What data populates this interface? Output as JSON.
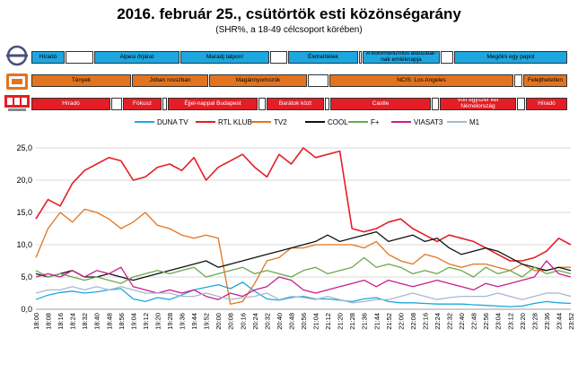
{
  "header": {
    "title": "2016. február 25., csütörtök esti közönségarány",
    "subtitle": "(SHR%, a 18-49 célcsoport körében)"
  },
  "colors": {
    "m1_blue": "#1ea6df",
    "tv2_orange": "#e2741f",
    "rtl_red": "#e41e26"
  },
  "schedule": {
    "m1": [
      {
        "label": "Híradó",
        "color": "#1ea6df"
      },
      {
        "label": "",
        "color": "#ffffff"
      },
      {
        "label": "Alpesi őrjárat",
        "color": "#1ea6df"
      },
      {
        "label": "Maradj talpon!",
        "color": "#1ea6df"
      },
      {
        "label": "",
        "color": "#ffffff"
      },
      {
        "label": "Életrelítélek",
        "color": "#1ea6df"
      },
      {
        "label": "",
        "color": "#ffffff"
      },
      {
        "label": "A kommunizmus áldozatai-nak emléknapja",
        "color": "#1ea6df"
      },
      {
        "label": "",
        "color": "#ffffff"
      },
      {
        "label": "Megölni egy papot",
        "color": "#1ea6df"
      }
    ],
    "tv2": [
      {
        "label": "Tények",
        "color": "#e2741f"
      },
      {
        "label": "Jóban rosszban",
        "color": "#e2741f"
      },
      {
        "label": "Magánnyomozók",
        "color": "#e2741f"
      },
      {
        "label": "",
        "color": "#ffffff"
      },
      {
        "label": "NCIS: Los Angeles",
        "color": "#e2741f"
      },
      {
        "label": "",
        "color": "#ffffff"
      },
      {
        "label": "Felejthetetlen",
        "color": "#e2741f"
      }
    ],
    "rtl": [
      {
        "label": "Híradó",
        "color": "#e41e26"
      },
      {
        "label": "",
        "color": "#ffffff"
      },
      {
        "label": "Fókusz",
        "color": "#e41e26"
      },
      {
        "label": "",
        "color": "#ffffff"
      },
      {
        "label": "Éjjel-nappal Budapest",
        "color": "#e41e26"
      },
      {
        "label": "",
        "color": "#ffffff"
      },
      {
        "label": "Barátok közt",
        "color": "#e41e26"
      },
      {
        "label": "",
        "color": "#ffffff"
      },
      {
        "label": "Castle",
        "color": "#e41e26"
      },
      {
        "label": "",
        "color": "#ffffff"
      },
      {
        "label": "Volt egyszer két Némelország",
        "color": "#e41e26"
      },
      {
        "label": "",
        "color": "#ffffff"
      },
      {
        "label": "Híradó",
        "color": "#e41e26"
      }
    ]
  },
  "chart_data": {
    "type": "line",
    "ylim": [
      0,
      25
    ],
    "yticks": [
      "0,0",
      "5,0",
      "10,0",
      "15,0",
      "20,0",
      "25,0"
    ],
    "grid": true,
    "legend_position": "top",
    "x": [
      "18:00",
      "18:08",
      "18:16",
      "18:24",
      "18:32",
      "18:40",
      "18:48",
      "18:56",
      "19:04",
      "19:12",
      "19:20",
      "19:28",
      "19:36",
      "19:44",
      "19:52",
      "20:00",
      "20:08",
      "20:16",
      "20:24",
      "20:32",
      "20:40",
      "20:48",
      "20:56",
      "21:04",
      "21:12",
      "21:20",
      "21:28",
      "21:36",
      "21:44",
      "21:52",
      "22:00",
      "22:08",
      "22:16",
      "22:24",
      "22:32",
      "22:40",
      "22:48",
      "22:56",
      "23:04",
      "23:12",
      "23:20",
      "23:28",
      "23:36",
      "23:44",
      "23:52"
    ],
    "series": [
      {
        "name": "DUNA TV",
        "color": "#1ea6df",
        "values": [
          1.5,
          2.2,
          2.6,
          2.8,
          2.5,
          2.7,
          3.0,
          3.2,
          1.6,
          1.2,
          1.8,
          1.5,
          2.2,
          3.0,
          3.4,
          3.8,
          3.2,
          4.2,
          2.8,
          1.6,
          1.4,
          1.8,
          2.0,
          1.6,
          1.6,
          1.4,
          1.2,
          1.6,
          1.8,
          1.2,
          1.0,
          1.0,
          0.9,
          0.8,
          0.8,
          0.8,
          0.7,
          0.6,
          0.5,
          0.4,
          0.5,
          0.9,
          1.2,
          1.0,
          0.9
        ]
      },
      {
        "name": "RTL KLUB",
        "color": "#e41e26",
        "values": [
          14.0,
          17.0,
          16.0,
          19.5,
          21.5,
          22.5,
          23.5,
          23.0,
          20.0,
          20.5,
          22.0,
          22.5,
          21.5,
          23.5,
          20.0,
          22.0,
          23.0,
          24.0,
          22.0,
          20.5,
          24.0,
          22.5,
          25.0,
          23.5,
          24.0,
          24.5,
          12.5,
          12.0,
          12.5,
          13.5,
          14.0,
          12.5,
          11.5,
          10.5,
          11.5,
          11.0,
          10.5,
          9.5,
          8.5,
          7.5,
          7.5,
          8.0,
          9.0,
          11.0,
          10.0
        ]
      },
      {
        "name": "TV2",
        "color": "#e2741f",
        "values": [
          8.0,
          12.5,
          15.0,
          13.5,
          15.5,
          15.0,
          14.0,
          12.5,
          13.5,
          15.0,
          13.0,
          12.5,
          11.5,
          11.0,
          11.5,
          11.0,
          0.8,
          1.2,
          4.0,
          7.5,
          8.0,
          9.5,
          9.5,
          10.0,
          10.0,
          10.0,
          10.0,
          9.5,
          10.5,
          8.5,
          7.5,
          7.0,
          8.5,
          8.0,
          7.0,
          6.5,
          7.0,
          7.0,
          6.5,
          6.0,
          7.0,
          6.0,
          6.0,
          6.5,
          6.5
        ]
      },
      {
        "name": "COOL",
        "color": "#111111",
        "values": [
          5.5,
          5.0,
          5.5,
          6.0,
          5.0,
          5.0,
          5.5,
          5.0,
          4.5,
          5.0,
          5.5,
          6.0,
          6.5,
          7.0,
          7.5,
          6.5,
          7.0,
          7.5,
          8.0,
          8.5,
          9.0,
          9.5,
          10.0,
          10.5,
          11.5,
          10.5,
          11.0,
          11.5,
          12.0,
          10.5,
          11.0,
          11.5,
          10.5,
          11.0,
          9.5,
          8.5,
          9.0,
          9.5,
          9.0,
          8.0,
          7.0,
          6.5,
          6.0,
          6.5,
          6.0
        ]
      },
      {
        "name": "F+",
        "color": "#6aa84f",
        "values": [
          6.0,
          5.0,
          5.5,
          5.0,
          4.5,
          5.0,
          4.5,
          4.0,
          5.0,
          5.5,
          6.0,
          5.5,
          6.0,
          6.5,
          5.0,
          5.5,
          6.0,
          6.5,
          5.5,
          6.0,
          5.5,
          5.0,
          6.0,
          6.5,
          5.5,
          6.0,
          6.5,
          8.0,
          6.5,
          7.0,
          6.5,
          5.5,
          6.0,
          5.5,
          6.5,
          6.0,
          5.0,
          6.5,
          5.5,
          6.0,
          5.0,
          6.5,
          5.5,
          6.0,
          5.5
        ]
      },
      {
        "name": "VIASAT3",
        "color": "#c81e8c",
        "values": [
          5.0,
          5.5,
          5.0,
          6.0,
          5.0,
          6.0,
          5.5,
          6.5,
          3.5,
          3.0,
          2.5,
          3.0,
          2.5,
          3.0,
          2.0,
          1.5,
          2.5,
          2.0,
          3.0,
          3.5,
          5.0,
          4.5,
          3.0,
          2.5,
          3.0,
          3.5,
          4.0,
          4.5,
          3.5,
          4.5,
          4.0,
          3.5,
          4.0,
          4.5,
          4.0,
          3.5,
          3.0,
          4.0,
          3.5,
          4.0,
          4.5,
          5.0,
          7.5,
          5.5,
          5.0
        ]
      },
      {
        "name": "M1",
        "color": "#a8b8d0",
        "values": [
          2.5,
          3.0,
          3.0,
          3.5,
          3.0,
          3.5,
          3.0,
          3.5,
          3.0,
          2.5,
          2.5,
          2.5,
          2.0,
          2.0,
          2.5,
          2.0,
          1.5,
          1.8,
          2.0,
          2.5,
          1.5,
          2.0,
          1.8,
          1.5,
          2.0,
          1.5,
          1.0,
          1.2,
          1.5,
          1.5,
          2.0,
          2.5,
          2.0,
          1.5,
          1.8,
          2.0,
          2.0,
          2.0,
          2.5,
          2.0,
          1.5,
          2.0,
          2.5,
          2.5,
          2.0
        ]
      }
    ]
  }
}
